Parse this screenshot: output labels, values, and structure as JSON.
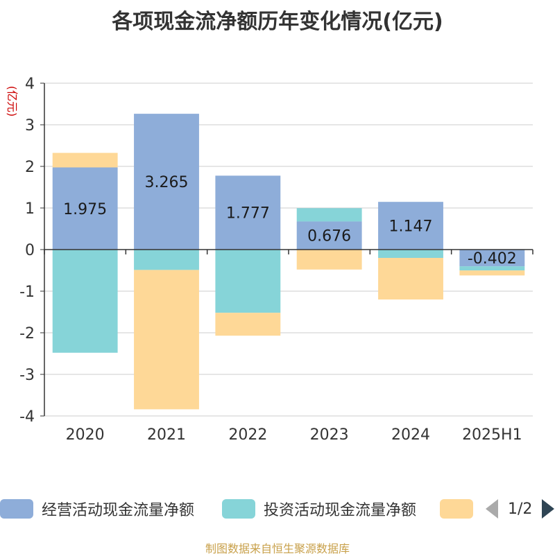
{
  "chart_data": {
    "type": "bar",
    "stacked": true,
    "title": "各项现金流净额历年变化情况(亿元)",
    "ylabel": "(亿元)",
    "xlabel": "",
    "categories": [
      "2020",
      "2021",
      "2022",
      "2023",
      "2024",
      "2025H1"
    ],
    "ylim": [
      -4,
      4
    ],
    "yticks": [
      4,
      3,
      2,
      1,
      0,
      -1,
      -2,
      -3,
      -4
    ],
    "grid": true,
    "legend_position": "bottom",
    "series": [
      {
        "name": "经营活动现金流量净额",
        "color": "#8eadd9",
        "values": [
          1.975,
          3.265,
          1.777,
          0.676,
          1.147,
          -0.402
        ],
        "data_labels": [
          "1.975",
          "3.265",
          "1.777",
          "0.676",
          "1.147",
          "-0.402"
        ]
      },
      {
        "name": "投资活动现金流量净额",
        "color": "#86d4d8",
        "values": [
          -2.48,
          -0.49,
          -1.52,
          0.32,
          -0.2,
          -0.1
        ]
      },
      {
        "name": "",
        "color": "#fed897",
        "values": [
          0.35,
          -3.35,
          -0.55,
          -0.48,
          -1.0,
          -0.12
        ]
      }
    ]
  },
  "legend": {
    "items": [
      {
        "label": "经营活动现金流量净额",
        "color": "#8eadd9"
      },
      {
        "label": "投资活动现金流量净额",
        "color": "#86d4d8"
      },
      {
        "label": "",
        "color": "#fed897"
      }
    ],
    "pager_text": "1/2"
  },
  "footer": {
    "source": "制图数据来自恒生聚源数据库"
  }
}
